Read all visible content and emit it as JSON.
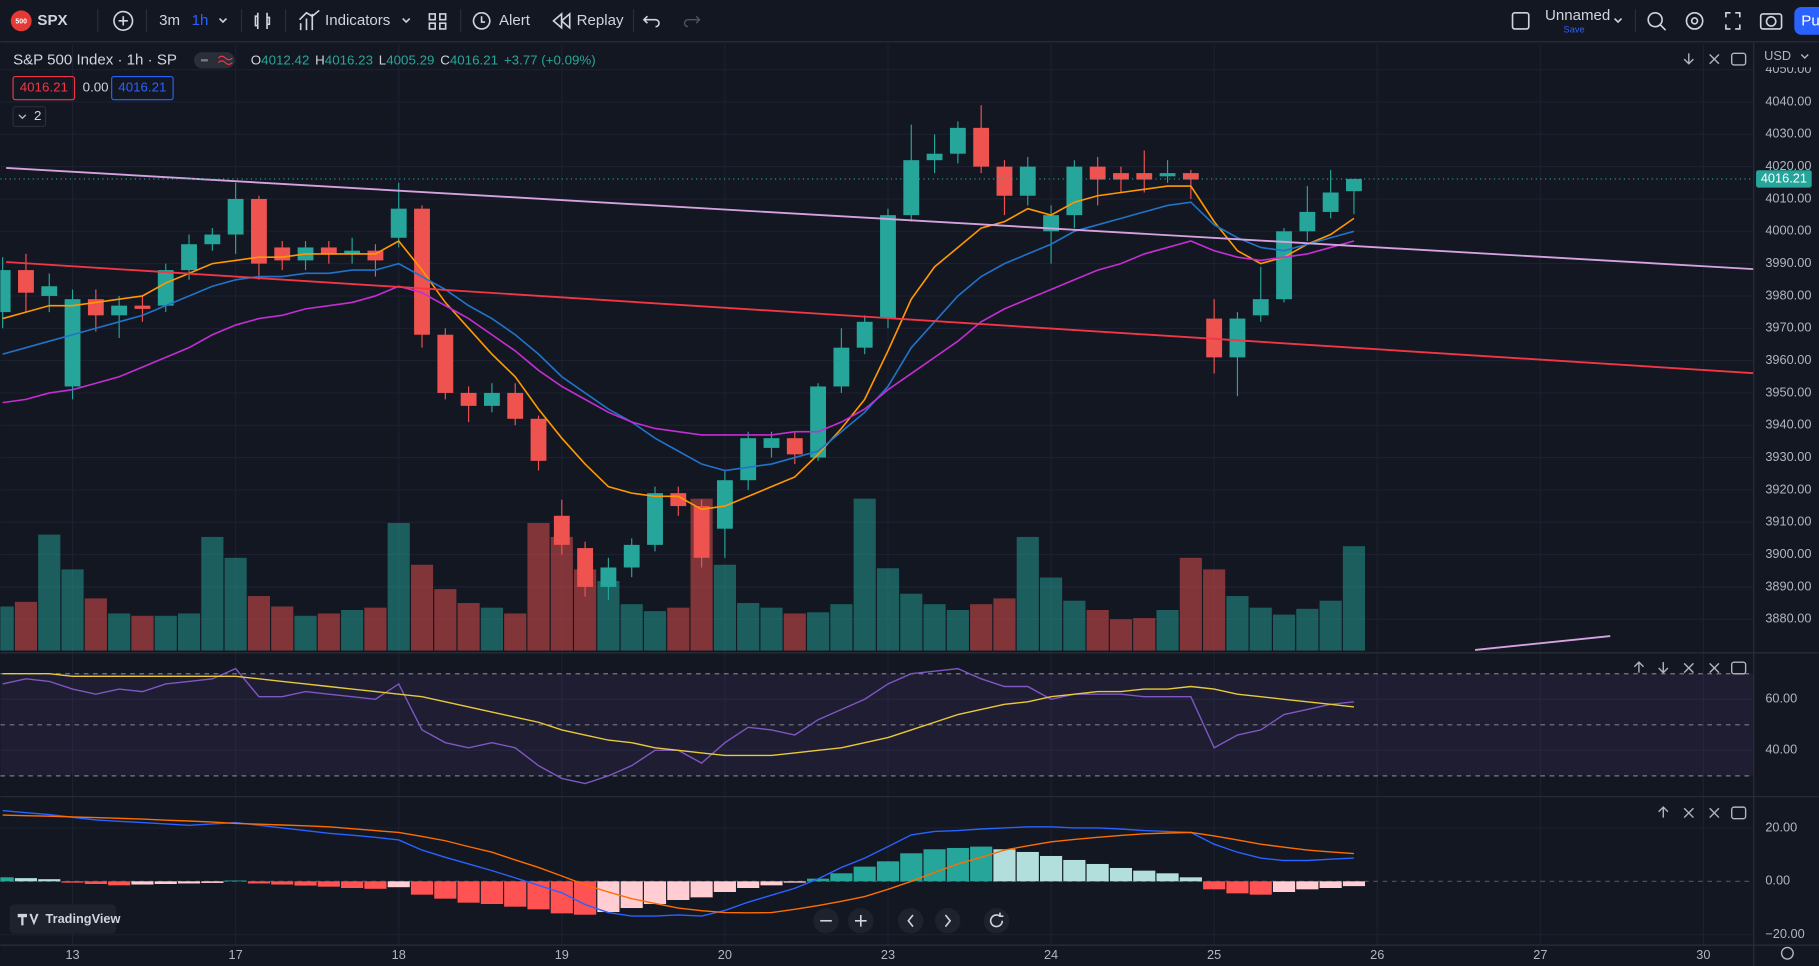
{
  "ui": {
    "badge": "500",
    "symbol": "SPX",
    "intervals": [
      "3m",
      "1h"
    ],
    "indicators": "Indicators",
    "alert": "Alert",
    "replay": "Replay",
    "layout_name": "Unnamed",
    "save": "Save",
    "publish": "Pu",
    "currency": "USD",
    "legend": {
      "ohlc": [
        {
          "label": "O",
          "value": "4012.42"
        },
        {
          "label": "H",
          "value": "4016.23"
        },
        {
          "label": "L",
          "value": "4005.29"
        },
        {
          "label": "C",
          "value": "4016.21"
        }
      ],
      "change": "+3.77 (+0.09%)",
      "bid": "4016.21",
      "spread": "0.00",
      "ask": "4016.21",
      "collapse": "2"
    },
    "logo": "TradingView"
  },
  "chart_data": [
    {
      "type": "candlestick",
      "title": "S&P 500 Index · 1h · SP",
      "open": [
        3975,
        3988,
        3980,
        3952,
        3979,
        3974,
        3977,
        3977,
        3988,
        3996,
        3999,
        4010,
        3995,
        3991,
        3995,
        3993,
        3994,
        3998,
        4007,
        3968,
        3950,
        3946,
        3950,
        3942,
        3912,
        3902,
        3890,
        3896,
        3903,
        3919,
        3915,
        3908,
        3923,
        3933,
        3936,
        3930,
        3952,
        3964,
        3973,
        4005,
        4022,
        4024,
        4032,
        4020,
        4011,
        4000,
        4005,
        4020,
        4018,
        4018,
        4017,
        4018,
        3973,
        3961,
        3974,
        3979,
        4000,
        4006,
        4012.42
      ],
      "high": [
        3992,
        3993,
        3987,
        3982,
        3982,
        3980,
        3980,
        3990,
        3999,
        4001,
        4015,
        4011,
        3997,
        3997,
        3997,
        3998,
        3996,
        4015,
        4008,
        3970,
        3952,
        3953,
        3953,
        3943,
        3917,
        3904,
        3899,
        3905,
        3921,
        3921,
        3917,
        3926,
        3938,
        3938,
        3938,
        3953,
        3970,
        3974,
        4007,
        4033,
        4030,
        4034,
        4039,
        4022,
        4023,
        4008,
        4022,
        4023,
        4020,
        4025,
        4022,
        4019,
        3979,
        3975,
        3989,
        4001,
        4014,
        4019,
        4016.23
      ],
      "low": [
        3970,
        3975,
        3975,
        3948,
        3969,
        3967,
        3972,
        3975,
        3985,
        3994,
        3993,
        3985,
        3988,
        3988,
        3990,
        3990,
        3986,
        3995,
        3964,
        3948,
        3941,
        3944,
        3940,
        3926,
        3900,
        3887,
        3886,
        3893,
        3901,
        3912,
        3896,
        3899,
        3920,
        3930,
        3928,
        3929,
        3950,
        3962,
        3970,
        4003,
        4018,
        4021,
        4018,
        4005,
        4008,
        3990,
        4001,
        4008,
        4012,
        4012,
        4015,
        4010,
        3956,
        3949,
        3972,
        3978,
        3997,
        4004,
        4005.29
      ],
      "close": [
        3988,
        3981,
        3983,
        3979,
        3974,
        3977,
        3976,
        3988,
        3996,
        3999,
        4010,
        3990,
        3991,
        3995,
        3993,
        3994,
        3991,
        4007,
        3968,
        3950,
        3946,
        3950,
        3942,
        3929,
        3903,
        3890,
        3896,
        3903,
        3919,
        3915,
        3899,
        3923,
        3936,
        3936,
        3931,
        3952,
        3964,
        3972,
        4005,
        4022,
        4024,
        4032,
        4020,
        4011,
        4020,
        4005,
        4020,
        4016,
        4016,
        4016,
        4018,
        4016,
        3961,
        3973,
        3979,
        4000,
        4006,
        4012,
        4016.21
      ],
      "volume": [
        38,
        42,
        100,
        70,
        45,
        32,
        30,
        30,
        32,
        98,
        80,
        47,
        38,
        30,
        32,
        35,
        37,
        110,
        74,
        53,
        41,
        37,
        32,
        110,
        98,
        70,
        60,
        40,
        34,
        37,
        131,
        74,
        41,
        37,
        32,
        33,
        40,
        131,
        71,
        49,
        40,
        35,
        40,
        45,
        98,
        63,
        43,
        35,
        27,
        28,
        35,
        80,
        70,
        47,
        37,
        31,
        36,
        43,
        90
      ],
      "volume_ylim": [
        0,
        521
      ],
      "volume_opacity": 0.5,
      "up_color": "#26a69a",
      "down_color": "#ef5350",
      "series": [
        {
          "color": "#ff9800",
          "values": [
            3973,
            3975,
            3977,
            3977,
            3978,
            3979,
            3980,
            3984,
            3987,
            3990,
            3991,
            3992,
            3992,
            3993,
            3993,
            3993,
            3993,
            3997,
            3988,
            3978,
            3970,
            3962,
            3955,
            3945,
            3936,
            3928,
            3921,
            3919,
            3918,
            3918,
            3914,
            3915,
            3918,
            3921,
            3924,
            3931,
            3939,
            3948,
            3963,
            3979,
            3989,
            3995,
            4001,
            4003,
            4007,
            4005,
            4009,
            4011,
            4012,
            4013,
            4014,
            4014,
            4003,
            3994,
            3990,
            3992,
            3996,
            3999,
            4004
          ]
        },
        {
          "color": "#2073c9",
          "values": [
            3962,
            3964,
            3966,
            3968,
            3970,
            3972,
            3974,
            3977,
            3980,
            3983,
            3985,
            3986,
            3986,
            3987,
            3987,
            3988,
            3988,
            3990,
            3986,
            3982,
            3977,
            3973,
            3968,
            3962,
            3955,
            3950,
            3945,
            3941,
            3936,
            3932,
            3928,
            3926,
            3927,
            3928,
            3930,
            3932,
            3938,
            3944,
            3952,
            3964,
            3972,
            3980,
            3986,
            3990,
            3993,
            3996,
            4000,
            4002,
            4004,
            4006,
            4008,
            4009,
            4002,
            3998,
            3995,
            3994,
            3996,
            3998,
            4000
          ]
        },
        {
          "color": "#c32ed3",
          "values": [
            3947,
            3948,
            3950,
            3951,
            3953,
            3955,
            3958,
            3961,
            3964,
            3968,
            3971,
            3973,
            3974,
            3976,
            3977,
            3978,
            3980,
            3983,
            3981,
            3977,
            3973,
            3968,
            3963,
            3957,
            3952,
            3948,
            3944,
            3941,
            3939,
            3938,
            3937,
            3937,
            3937,
            3937,
            3938,
            3938,
            3941,
            3945,
            3951,
            3956,
            3961,
            3966,
            3972,
            3976,
            3979,
            3982,
            3985,
            3988,
            3990,
            3993,
            3995,
            3997,
            3994,
            3992,
            3991,
            3992,
            3993,
            3995,
            3997
          ]
        }
      ],
      "trendlines": [
        {
          "color": "#d6a3e0",
          "start": [
            0.15,
            4019.6
          ],
          "end": [
            75.16,
            3988.3
          ]
        },
        {
          "color": "#f23645",
          "start": [
            0.15,
            3990.5
          ],
          "end": [
            75.16,
            3956.1
          ]
        },
        {
          "color": "#d6a3e0",
          "start": [
            63.2,
            3870.5
          ],
          "end": [
            69,
            3874.8
          ]
        }
      ],
      "last_price": 4016.21,
      "xlim": [
        -0.1,
        75.16
      ],
      "xticks": [
        {
          "value": 3,
          "label": "13"
        },
        {
          "value": 10,
          "label": "17"
        },
        {
          "value": 17,
          "label": "18"
        },
        {
          "value": 24,
          "label": "19"
        },
        {
          "value": 31,
          "label": "20"
        },
        {
          "value": 38,
          "label": "23"
        },
        {
          "value": 45,
          "label": "24"
        },
        {
          "value": 52,
          "label": "25"
        },
        {
          "value": 59,
          "label": "26"
        },
        {
          "value": 66,
          "label": "27"
        },
        {
          "value": 73,
          "label": "30"
        }
      ],
      "ylim": [
        3870.3,
        4057.2
      ],
      "yticks": [
        {
          "value": 3880,
          "label": "3880.00"
        },
        {
          "value": 3890,
          "label": "3890.00"
        },
        {
          "value": 3900,
          "label": "3900.00"
        },
        {
          "value": 3910,
          "label": "3910.00"
        },
        {
          "value": 3920,
          "label": "3920.00"
        },
        {
          "value": 3930,
          "label": "3930.00"
        },
        {
          "value": 3940,
          "label": "3940.00"
        },
        {
          "value": 3950,
          "label": "3950.00"
        },
        {
          "value": 3960,
          "label": "3960.00"
        },
        {
          "value": 3970,
          "label": "3970.00"
        },
        {
          "value": 3980,
          "label": "3980.00"
        },
        {
          "value": 3990,
          "label": "3990.00"
        },
        {
          "value": 4000,
          "label": "4000.00"
        },
        {
          "value": 4010,
          "label": "4010.00"
        },
        {
          "value": 4020,
          "label": "4020.00"
        },
        {
          "value": 4030,
          "label": "4030.00"
        },
        {
          "value": 4040,
          "label": "4040.00"
        },
        {
          "value": 4050,
          "label": "4050.00"
        }
      ],
      "grid": true
    },
    {
      "type": "line",
      "series": [
        {
          "color": "#7e57c2",
          "values": [
            66,
            68,
            67,
            64,
            62,
            64,
            63,
            66,
            67,
            68,
            72,
            61,
            61,
            63,
            62,
            61,
            60,
            66,
            48,
            43,
            41,
            43,
            41,
            34,
            29,
            27,
            30,
            34,
            40,
            40,
            35,
            43,
            49,
            48,
            46,
            52,
            56,
            60,
            66,
            70,
            71,
            72,
            68,
            65,
            65,
            60,
            62,
            62,
            62,
            61,
            61,
            61,
            41,
            46,
            48,
            54,
            56,
            58,
            59
          ]
        },
        {
          "color": "#e8c93a",
          "values": [
            70,
            70,
            70,
            69,
            69,
            69,
            69,
            69,
            69,
            69,
            69,
            68,
            67,
            66,
            65,
            64,
            63,
            62,
            61,
            59,
            57,
            55,
            53,
            51,
            48,
            46,
            44,
            43,
            41,
            40,
            39,
            38,
            38,
            38,
            39,
            40,
            41,
            43,
            45,
            48,
            51,
            54,
            56,
            58,
            59,
            61,
            62,
            63,
            63,
            64,
            64,
            65,
            64,
            62,
            61,
            60,
            59,
            58,
            57
          ]
        }
      ],
      "levels": [
        70,
        50,
        30
      ],
      "band_color": "#7e57c2",
      "ylim": [
        22.3,
        76.8
      ],
      "yticks": [
        {
          "value": 40,
          "label": "40.00"
        },
        {
          "value": 60,
          "label": "60.00"
        }
      ]
    },
    {
      "type": "macd",
      "histogram": [
        1.5,
        1.2,
        0.8,
        -0.5,
        -1,
        -1.5,
        -1.2,
        -1,
        -0.8,
        -0.6,
        0.3,
        -0.8,
        -1.2,
        -1.6,
        -2,
        -2.5,
        -2.8,
        -2.2,
        -5,
        -6.5,
        -8,
        -8.5,
        -9.5,
        -10.5,
        -12,
        -12.5,
        -11.5,
        -10,
        -8.5,
        -7,
        -6,
        -4,
        -2.5,
        -1.5,
        -0.5,
        1,
        3,
        5.5,
        7.5,
        10.5,
        12,
        12.5,
        13,
        12,
        11,
        9.5,
        8,
        6.5,
        5,
        4,
        3,
        1.5,
        -3,
        -4.5,
        -5,
        -4,
        -3,
        -2.5,
        -1.8
      ],
      "histogram_colors": {
        "pos_up": "#26a69a",
        "pos_down": "#b2dfdb",
        "neg_down": "#ff5252",
        "neg_up": "#ffcdd2"
      },
      "series": [
        {
          "color": "#2962ff",
          "values": [
            26.5,
            25.7,
            25,
            24,
            23,
            22.5,
            22,
            21.5,
            21,
            21.5,
            22,
            21,
            20,
            19,
            18,
            17.3,
            16.5,
            15.5,
            11.7,
            9,
            6.5,
            4,
            1.3,
            -1.5,
            -4.3,
            -8.7,
            -11.7,
            -13,
            -13,
            -12.6,
            -13,
            -10.9,
            -7.8,
            -5.2,
            -2.6,
            0.9,
            5.2,
            8.7,
            13,
            17.4,
            18.7,
            19,
            19.6,
            20,
            20.4,
            20.4,
            20,
            20,
            19.6,
            19,
            18.7,
            18.3,
            13.9,
            10.9,
            8.7,
            7.8,
            7.8,
            8.3,
            8.7
          ]
        },
        {
          "color": "#ff6d00",
          "values": [
            24.8,
            24.6,
            24.4,
            24.1,
            23.9,
            23.6,
            23.3,
            22.9,
            22.6,
            22.2,
            21.7,
            21.4,
            21.1,
            20.8,
            20.4,
            19.7,
            19,
            18.3,
            16.8,
            15.2,
            13,
            10.9,
            8,
            5.2,
            2,
            -1.3,
            -4,
            -6.5,
            -8.3,
            -10,
            -11,
            -11.7,
            -11.8,
            -11.7,
            -10.5,
            -9.1,
            -7.5,
            -5.7,
            -3,
            0,
            3.3,
            6.5,
            9,
            11.7,
            13.3,
            14.8,
            15.7,
            16.5,
            17.2,
            17.8,
            18.1,
            18.3,
            17,
            15.5,
            13.9,
            12.8,
            11.7,
            11,
            10.4
          ]
        }
      ],
      "ylim": [
        -23.9,
        30.4
      ],
      "yticks": [
        {
          "value": -20,
          "label": "−20.00"
        },
        {
          "value": 0,
          "label": "0.00"
        },
        {
          "value": 20,
          "label": "20.00"
        }
      ]
    }
  ]
}
